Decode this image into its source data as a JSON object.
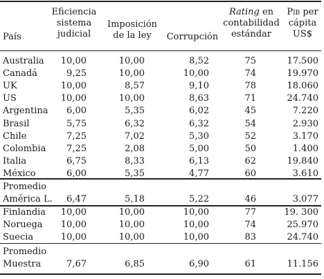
{
  "headers": {
    "pais": "País",
    "eficiencia": [
      "Eficiencia",
      "sistema",
      "judicial"
    ],
    "imposicion": [
      "Imposición",
      "de la ley"
    ],
    "corrupcion": "Corrupción",
    "rating_word": "Rating",
    "rating_rest": " en",
    "rating_lines": [
      "contabilidad",
      "estándar"
    ],
    "pib_word": "Pib",
    "pib_rest": " per",
    "pib_lines": [
      "cápita",
      "US$"
    ]
  },
  "group1": [
    {
      "pais": "Australia",
      "eficiencia": "10,00",
      "imposicion": "10,00",
      "corrupcion": "8,52",
      "rating": "75",
      "pib": "17.500"
    },
    {
      "pais": "Canadá",
      "eficiencia": "9,25",
      "imposicion": "10,00",
      "corrupcion": "10,00",
      "rating": "74",
      "pib": "19.970"
    },
    {
      "pais": "UK",
      "eficiencia": "10,00",
      "imposicion": "8,57",
      "corrupcion": "9,10",
      "rating": "78",
      "pib": "18.060"
    },
    {
      "pais": "US",
      "eficiencia": "10,00",
      "imposicion": "10,00",
      "corrupcion": "8,63",
      "rating": "71",
      "pib": "24.740"
    },
    {
      "pais": "Argentina",
      "eficiencia": "6,00",
      "imposicion": "5,35",
      "corrupcion": "6,02",
      "rating": "45",
      "pib": "7.220"
    },
    {
      "pais": "Brasil",
      "eficiencia": "5,75",
      "imposicion": "6,32",
      "corrupcion": "6,32",
      "rating": "54",
      "pib": "2.930"
    },
    {
      "pais": "Chile",
      "eficiencia": "7,25",
      "imposicion": "7,02",
      "corrupcion": "5,30",
      "rating": "52",
      "pib": "3.170"
    },
    {
      "pais": "Colombia",
      "eficiencia": "7,25",
      "imposicion": "2,08",
      "corrupcion": "5,00",
      "rating": "50",
      "pib": "1.400"
    },
    {
      "pais": "Italia",
      "eficiencia": "6,75",
      "imposicion": "8,33",
      "corrupcion": "6,13",
      "rating": "62",
      "pib": "19.840"
    },
    {
      "pais": "México",
      "eficiencia": "6,00",
      "imposicion": "5,35",
      "corrupcion": "4,77",
      "rating": "60",
      "pib": "3.610"
    }
  ],
  "promedio_al": {
    "label1": "Promedio",
    "label2": "América L.",
    "eficiencia": "6,47",
    "imposicion": "5,18",
    "corrupcion": "5,22",
    "rating": "46",
    "pib": "3.077"
  },
  "group2": [
    {
      "pais": "Finlandia",
      "eficiencia": "10,00",
      "imposicion": "10,00",
      "corrupcion": "10,00",
      "rating": "77",
      "pib": "19. 300"
    },
    {
      "pais": "Noruega",
      "eficiencia": "10,00",
      "imposicion": "10,00",
      "corrupcion": "10,00",
      "rating": "74",
      "pib": "25.970"
    },
    {
      "pais": "Suecia",
      "eficiencia": "10,00",
      "imposicion": "10,00",
      "corrupcion": "10,00",
      "rating": "83",
      "pib": "24.740"
    }
  ],
  "promedio_muestra": {
    "label1": "Promedio",
    "label2": "Muestra",
    "eficiencia": "7,67",
    "imposicion": "6,85",
    "corrupcion": "6,90",
    "rating": "61",
    "pib": "11.156"
  }
}
